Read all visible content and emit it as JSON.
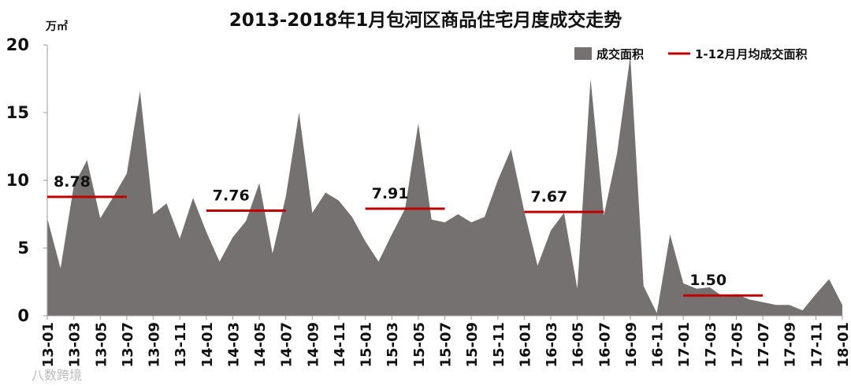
{
  "chart_data": {
    "type": "area",
    "title": "2013-2018年1月包河区商品住宅月度成交走势",
    "unit_label": "万㎡",
    "ylim": [
      0,
      20
    ],
    "yticks": [
      0,
      5,
      10,
      15,
      20
    ],
    "x": [
      "13-01",
      "13-02",
      "13-03",
      "13-04",
      "13-05",
      "13-06",
      "13-07",
      "13-08",
      "13-09",
      "13-10",
      "13-11",
      "13-12",
      "14-01",
      "14-02",
      "14-03",
      "14-04",
      "14-05",
      "14-06",
      "14-07",
      "14-08",
      "14-09",
      "14-10",
      "14-11",
      "14-12",
      "15-01",
      "15-02",
      "15-03",
      "15-04",
      "15-05",
      "15-06",
      "15-07",
      "15-08",
      "15-09",
      "15-10",
      "15-11",
      "15-12",
      "16-01",
      "16-02",
      "16-03",
      "16-04",
      "16-05",
      "16-06",
      "16-07",
      "16-08",
      "16-09",
      "16-10",
      "16-11",
      "16-12",
      "17-01",
      "17-02",
      "17-03",
      "17-04",
      "17-05",
      "17-06",
      "17-07",
      "17-08",
      "17-09",
      "17-10",
      "17-11",
      "17-12",
      "18-01"
    ],
    "xtick_labels": [
      "13-01",
      "13-03",
      "13-05",
      "13-07",
      "13-09",
      "13-11",
      "14-01",
      "14-03",
      "14-05",
      "14-07",
      "14-09",
      "14-11",
      "15-01",
      "15-03",
      "15-05",
      "15-07",
      "15-09",
      "15-11",
      "16-01",
      "16-03",
      "16-05",
      "16-07",
      "16-09",
      "16-11",
      "17-01",
      "17-03",
      "17-05",
      "17-07",
      "17-09",
      "17-11",
      "18-01"
    ],
    "series": [
      {
        "name": "成交面积",
        "color": "#767171",
        "values": [
          7.2,
          3.5,
          9.6,
          11.5,
          7.2,
          8.8,
          10.5,
          16.6,
          7.5,
          8.3,
          5.7,
          8.7,
          6.2,
          4.0,
          5.8,
          7.0,
          9.8,
          4.6,
          8.8,
          15.0,
          7.6,
          9.1,
          8.5,
          7.3,
          5.5,
          4.0,
          6.0,
          7.9,
          14.2,
          7.1,
          6.9,
          7.5,
          6.9,
          7.3,
          10.0,
          12.3,
          7.7,
          3.7,
          6.3,
          7.6,
          2.0,
          17.5,
          7.4,
          12.0,
          19.2,
          2.2,
          0.2,
          6.0,
          2.4,
          2.0,
          2.1,
          1.4,
          1.6,
          1.2,
          1.0,
          0.8,
          0.8,
          0.4,
          1.6,
          2.7,
          0.8
        ]
      },
      {
        "name": "1-12月月均成交面积",
        "color": "#c00000",
        "segments": [
          {
            "from": "13-01",
            "to": "13-07",
            "value": 8.78,
            "label": "8.78"
          },
          {
            "from": "14-01",
            "to": "14-07",
            "value": 7.76,
            "label": "7.76"
          },
          {
            "from": "15-01",
            "to": "15-07",
            "value": 7.91,
            "label": "7.91"
          },
          {
            "from": "16-01",
            "to": "16-07",
            "value": 7.67,
            "label": "7.67"
          },
          {
            "from": "17-01",
            "to": "17-07",
            "value": 1.5,
            "label": "1.50"
          }
        ]
      }
    ],
    "legend_position": "top-right",
    "grid": false
  },
  "watermark": "八数跨境"
}
